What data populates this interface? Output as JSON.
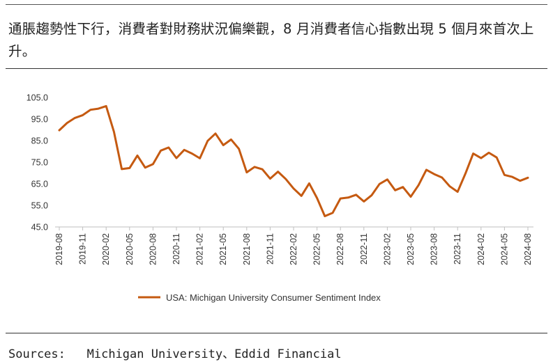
{
  "title": "通脹趨勢性下行，消費者對財務狀況偏樂觀，8 月消費者信心指數出現 5 個月來首次上升。",
  "source_prefix": "Sources:",
  "source_text": "Michigan University、Eddid Financial",
  "colors": {
    "series": "#C55A11",
    "axis": "#bfbfbf",
    "text": "#333333"
  },
  "chart_data": {
    "type": "line",
    "title": "",
    "xlabel": "",
    "ylabel": "",
    "ylim": [
      45,
      105
    ],
    "yticks": [
      "105.0",
      "95.0",
      "85.0",
      "75.0",
      "65.0",
      "55.0",
      "45.0"
    ],
    "xtick_labels": [
      "2019-08",
      "2019-11",
      "2020-02",
      "2020-05",
      "2020-08",
      "2020-11",
      "2021-02",
      "2021-05",
      "2021-08",
      "2021-11",
      "2022-02",
      "2022-05",
      "2022-08",
      "2022-11",
      "2023-02",
      "2023-05",
      "2023-08",
      "2023-11",
      "2024-02",
      "2024-05",
      "2024-08"
    ],
    "legend_position": "bottom-center",
    "grid": false,
    "series": [
      {
        "name": "USA: Michigan University Consumer Sentiment Index",
        "x": [
          "2019-08",
          "2019-09",
          "2019-10",
          "2019-11",
          "2019-12",
          "2020-01",
          "2020-02",
          "2020-03",
          "2020-04",
          "2020-05",
          "2020-06",
          "2020-07",
          "2020-08",
          "2020-09",
          "2020-10",
          "2020-11",
          "2020-12",
          "2021-01",
          "2021-02",
          "2021-03",
          "2021-04",
          "2021-05",
          "2021-06",
          "2021-07",
          "2021-08",
          "2021-09",
          "2021-10",
          "2021-11",
          "2021-12",
          "2022-01",
          "2022-02",
          "2022-03",
          "2022-04",
          "2022-05",
          "2022-06",
          "2022-07",
          "2022-08",
          "2022-09",
          "2022-10",
          "2022-11",
          "2022-12",
          "2023-01",
          "2023-02",
          "2023-03",
          "2023-04",
          "2023-05",
          "2023-06",
          "2023-07",
          "2023-08",
          "2023-09",
          "2023-10",
          "2023-11",
          "2023-12",
          "2024-01",
          "2024-02",
          "2024-03",
          "2024-04",
          "2024-05",
          "2024-06",
          "2024-07",
          "2024-08"
        ],
        "values": [
          89.8,
          93.2,
          95.5,
          96.8,
          99.3,
          99.8,
          101.0,
          89.1,
          71.8,
          72.3,
          78.1,
          72.5,
          74.1,
          80.4,
          81.8,
          76.9,
          80.7,
          79.0,
          76.8,
          84.9,
          88.3,
          82.9,
          85.5,
          81.2,
          70.3,
          72.8,
          71.7,
          67.4,
          70.6,
          67.2,
          62.8,
          59.4,
          65.2,
          58.4,
          50.0,
          51.5,
          58.2,
          58.6,
          59.9,
          56.8,
          59.7,
          64.9,
          67.0,
          62.0,
          63.5,
          59.0,
          64.4,
          71.5,
          69.5,
          67.9,
          63.8,
          61.3,
          69.7,
          79.0,
          76.9,
          79.4,
          77.2,
          69.1,
          68.2,
          66.4,
          67.8
        ]
      }
    ]
  }
}
